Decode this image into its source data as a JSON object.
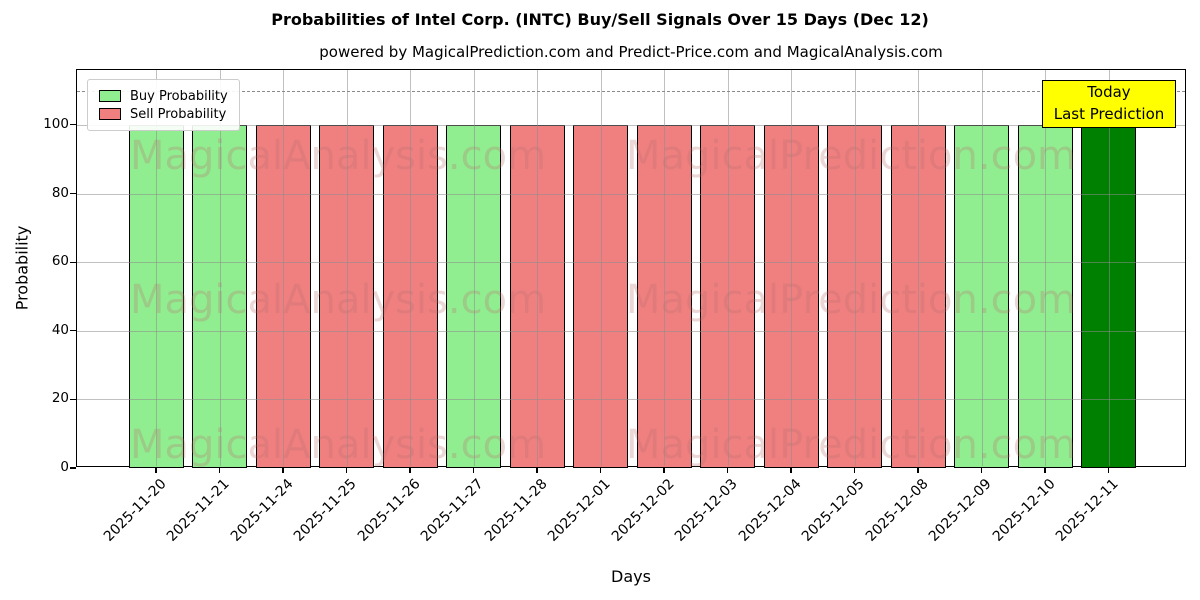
{
  "title": "Probabilities of Intel Corp. (INTC) Buy/Sell Signals Over 15 Days (Dec 12)",
  "subtitle": "powered by MagicalPrediction.com and Predict-Price.com and MagicalAnalysis.com",
  "legend": [
    {
      "label": "Buy Probability",
      "color": "#90EE90"
    },
    {
      "label": "Sell Probability",
      "color": "#F08080"
    }
  ],
  "annotation": {
    "line1": "Today",
    "line2": "Last Prediction",
    "bg": "#FFFF00"
  },
  "axes": {
    "xlabel": "Days",
    "ylabel": "Probability",
    "yticks": [
      0,
      20,
      40,
      60,
      80,
      100
    ],
    "ylim": [
      0,
      116
    ],
    "dashed_line_y": 110,
    "grid": "on"
  },
  "watermarks": [
    "MagicalAnalysis.com",
    "MagicalPrediction.com"
  ],
  "chart_data": {
    "type": "bar",
    "title": "Probabilities of Intel Corp. (INTC) Buy/Sell Signals Over 15 Days (Dec 12)",
    "xlabel": "Days",
    "ylabel": "Probability",
    "ylim": [
      0,
      116
    ],
    "categories": [
      "2025-11-20",
      "2025-11-21",
      "2025-11-24",
      "2025-11-25",
      "2025-11-26",
      "2025-11-27",
      "2025-11-28",
      "2025-12-01",
      "2025-12-02",
      "2025-12-03",
      "2025-12-04",
      "2025-12-05",
      "2025-12-08",
      "2025-12-09",
      "2025-12-10",
      "2025-12-11"
    ],
    "values": [
      100,
      100,
      100,
      100,
      100,
      100,
      100,
      100,
      100,
      100,
      100,
      100,
      100,
      100,
      100,
      100
    ],
    "signals": [
      "buy",
      "buy",
      "sell",
      "sell",
      "sell",
      "buy",
      "sell",
      "sell",
      "sell",
      "sell",
      "sell",
      "sell",
      "sell",
      "buy",
      "buy",
      "today"
    ],
    "colors": {
      "buy": "#90EE90",
      "sell": "#F08080",
      "today": "#008000"
    },
    "legend_position": "upper-left"
  }
}
